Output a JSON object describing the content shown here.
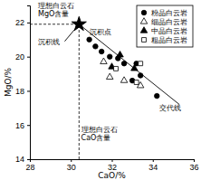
{
  "chart_data": {
    "type": "scatter",
    "xlabel": "CaO/%",
    "ylabel": "MgO/%",
    "xlim": [
      28,
      36
    ],
    "ylim": [
      14,
      23
    ],
    "xticks": [
      28,
      30,
      32,
      34,
      36
    ],
    "yticks": [
      14,
      16,
      18,
      20,
      22
    ],
    "legend": "upper right",
    "series": [
      {
        "name": "粉晶白云岩",
        "color": "#000000",
        "marker": "circle",
        "x": [
          30.9,
          31.2,
          31.5,
          31.9,
          32.3,
          32.6,
          33.2,
          33.4,
          33.0,
          34.2
        ],
        "y": [
          21.0,
          20.6,
          20.3,
          20.0,
          19.9,
          19.6,
          19.6,
          18.9,
          18.6,
          17.7
        ]
      },
      {
        "name": "细晶白云岩",
        "color": "#000000",
        "marker": "triangle-open",
        "x": [
          31.6,
          31.9,
          32.6,
          33.4
        ],
        "y": [
          19.7,
          18.8,
          18.6,
          18.3
        ]
      },
      {
        "name": "中晶白云岩",
        "color": "#000000",
        "marker": "triangle",
        "x": [
          32.0,
          32.4,
          33.1
        ],
        "y": [
          19.4,
          20.1,
          19.3
        ]
      },
      {
        "name": "粗晶白云岩",
        "color": "#000000",
        "marker": "square-open",
        "x": [
          32.2,
          33.2,
          33.4
        ],
        "y": [
          19.3,
          18.5,
          19.6
        ]
      }
    ],
    "point": {
      "label": "沉积点",
      "x": 30.4,
      "y": 21.9,
      "marker": "star",
      "color": "#000000",
      "label_at": [
        30.9,
        21.3
      ]
    },
    "reference_lines": [
      {
        "label": [
          "理想白云石",
          "MgO含量"
        ],
        "axis": "y",
        "line_style": "dashed",
        "label_at": [
          28.4,
          22.85
        ]
      },
      {
        "label": [
          "理想白云石",
          "CaO含量"
        ],
        "axis": "x",
        "line_style": "dashed",
        "label_at": [
          30.5,
          15.6
        ]
      }
    ],
    "lines": [
      {
        "label": "交代线",
        "x": [
          30.4,
          35.3
        ],
        "y": [
          21.9,
          17.2
        ],
        "label_at": [
          34.3,
          16.85
        ]
      },
      {
        "label": "沉积线",
        "x": [
          29.7,
          30.4
        ],
        "y": [
          20.9,
          21.9
        ],
        "label_at": [
          28.4,
          20.7
        ]
      }
    ]
  }
}
